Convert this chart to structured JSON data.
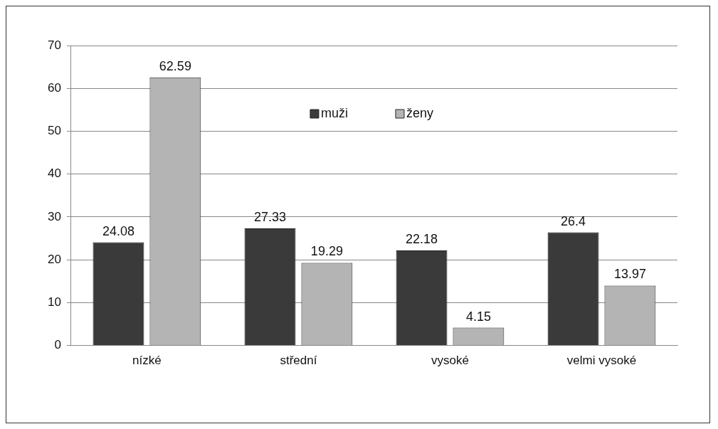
{
  "chart_data": {
    "type": "bar",
    "categories": [
      "nízké",
      "střední",
      "vysoké",
      "velmi vysoké"
    ],
    "series": [
      {
        "name": "muži",
        "color": "#3a3a3a",
        "values": [
          24.08,
          27.33,
          22.18,
          26.4
        ]
      },
      {
        "name": "ženy",
        "color": "#b4b4b4",
        "values": [
          62.59,
          19.29,
          4.15,
          13.97
        ]
      }
    ],
    "ylim": [
      0,
      70
    ],
    "yticks": [
      0,
      10,
      20,
      30,
      40,
      50,
      60,
      70
    ],
    "grid": "y",
    "legend": "top",
    "data_labels": true
  }
}
